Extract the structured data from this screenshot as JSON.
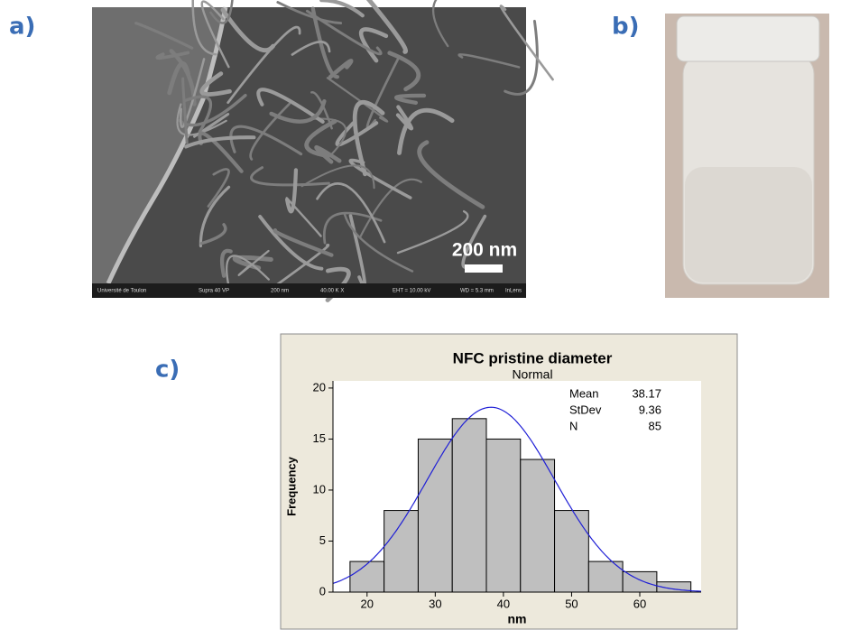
{
  "panels": {
    "a": {
      "label": "a)",
      "scale_bar": "200 nm",
      "footer": [
        "Université de Toulon",
        "Supra 40 VP",
        "200 nm",
        "40.00 K X",
        "EHT = 10.00 kV",
        "WD = 5.3 mm",
        "InLens"
      ]
    },
    "b": {
      "label": "b)"
    },
    "c": {
      "label": "c)"
    }
  },
  "chart_data": {
    "type": "histogram",
    "title": "NFC pristine diameter",
    "subtitle": "Normal",
    "x_label": "nm",
    "y_label": "Frequency",
    "bins": [
      17.5,
      22.5,
      27.5,
      32.5,
      37.5,
      42.5,
      47.5,
      52.5,
      57.5,
      62.5,
      67.5
    ],
    "counts": [
      3,
      8,
      15,
      17,
      15,
      13,
      8,
      3,
      2,
      1
    ],
    "color": "#bfbfbf",
    "curve_color": "#1f1fd6",
    "xlim": [
      15,
      69
    ],
    "xticks": [
      20,
      30,
      40,
      50,
      60
    ],
    "ylim": [
      0,
      20.7
    ],
    "yticks": [
      0,
      5,
      10,
      15,
      20
    ],
    "fit": {
      "labels": [
        "Mean",
        "StDev",
        "N"
      ],
      "values": [
        38.17,
        9.36,
        85
      ]
    }
  }
}
